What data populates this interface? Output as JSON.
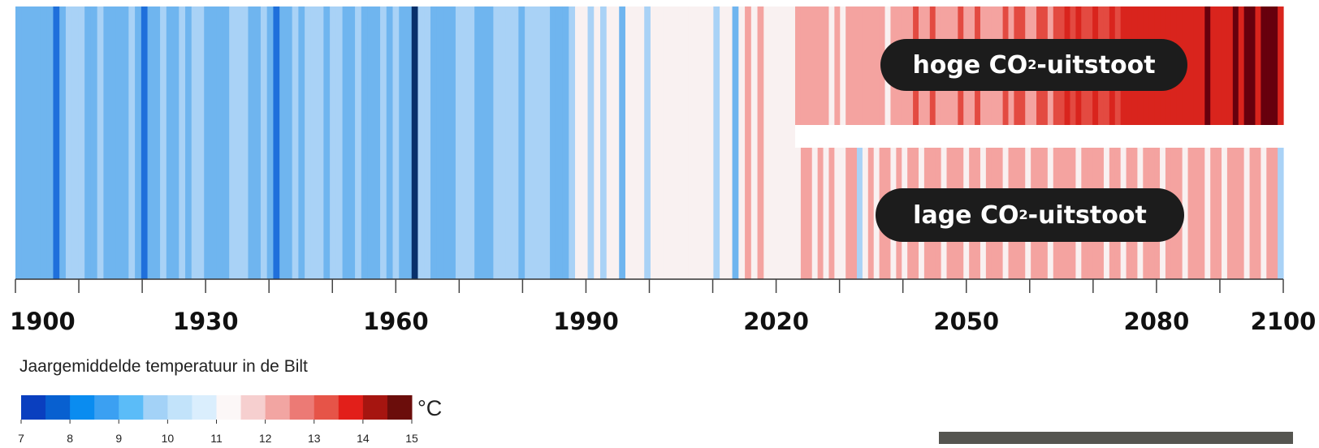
{
  "chart_data": {
    "type": "heatmap",
    "title": "",
    "x_range": [
      1900,
      2100
    ],
    "x_ticks": [
      "1900",
      "1930",
      "1960",
      "1990",
      "2020",
      "2050",
      "2080",
      "2100"
    ],
    "minor_tick_step_years": 10,
    "scenario_split_year": 2023,
    "scenarios": [
      {
        "name": "hoge CO2-uitstoot",
        "label_main": "hoge CO",
        "label_sub": "2",
        "label_tail": "-uitstoot"
      },
      {
        "name": "lage CO2-uitstoot",
        "label_main": "lage CO",
        "label_sub": "2",
        "label_tail": "-uitstoot"
      }
    ],
    "historical_bins": [
      9,
      9,
      9,
      9,
      9,
      9,
      8,
      9,
      10,
      10,
      10,
      9,
      9,
      10,
      9,
      9,
      9,
      9,
      10,
      9,
      8,
      9,
      9,
      10,
      9,
      9,
      10,
      9,
      10,
      10,
      9,
      9,
      9,
      9,
      10,
      10,
      10,
      9,
      9,
      10,
      9,
      8,
      9,
      9,
      10,
      9,
      10,
      10,
      10,
      9,
      10,
      10,
      9,
      9,
      10,
      9,
      9,
      9,
      10,
      9,
      10,
      9,
      9,
      7,
      10,
      10,
      9,
      9,
      9,
      9,
      10,
      10,
      10,
      9,
      9,
      9,
      10,
      10,
      10,
      10,
      9,
      10,
      10,
      10,
      10,
      9,
      9,
      9,
      10,
      11,
      11,
      10,
      11,
      10,
      11,
      11,
      9,
      11,
      11,
      11,
      10,
      11,
      11,
      11,
      11,
      11,
      11,
      11,
      11,
      11,
      11,
      10,
      11,
      11,
      9,
      11,
      12,
      11,
      12,
      11,
      11,
      11,
      11,
      11
    ],
    "high_emission_bins": [
      12,
      12,
      12,
      12,
      12,
      12,
      11,
      12,
      11,
      12,
      12,
      12,
      12,
      12,
      12,
      12,
      11,
      12,
      12,
      12,
      12,
      13,
      12,
      12,
      13,
      12,
      12,
      12,
      12,
      13,
      12,
      12,
      13,
      12,
      12,
      12,
      12,
      13,
      12,
      13,
      13,
      12,
      12,
      13,
      13,
      12,
      13,
      13,
      14,
      13,
      14,
      13,
      13,
      14,
      13,
      13,
      14,
      13,
      14,
      14,
      14,
      14,
      14,
      14,
      14,
      14,
      14,
      14,
      14,
      14,
      14,
      14,
      14,
      15,
      14,
      14,
      14,
      14,
      15,
      14,
      15,
      15,
      14,
      15,
      15,
      15,
      14
    ],
    "low_emission_bins": [
      11,
      12,
      12,
      11,
      12,
      11,
      12,
      11,
      11,
      12,
      12,
      10,
      11,
      12,
      11,
      12,
      12,
      11,
      12,
      11,
      12,
      12,
      11,
      12,
      12,
      12,
      11,
      12,
      12,
      12,
      11,
      12,
      12,
      11,
      12,
      12,
      12,
      11,
      12,
      12,
      12,
      11,
      12,
      12,
      12,
      11,
      12,
      12,
      12,
      12,
      11,
      12,
      12,
      12,
      12,
      11,
      12,
      12,
      11,
      12,
      12,
      11,
      12,
      12,
      12,
      11,
      12,
      12,
      12,
      11,
      12,
      12,
      12,
      11,
      12,
      12,
      11,
      12,
      12,
      12,
      11,
      12,
      12,
      11,
      12,
      12,
      10
    ],
    "color_scale": {
      "values": [
        7,
        8,
        9,
        10,
        11,
        12,
        13,
        14,
        15
      ],
      "tick_labels": [
        "7",
        "8",
        "9",
        "10",
        "11",
        "12",
        "13",
        "14",
        "15"
      ],
      "colors": [
        "#08306b",
        "#0b4fbf",
        "#1f6fdb",
        "#3a8ee6",
        "#6fb5ef",
        "#a9d2f6",
        "#d6ebfb",
        "#f9f1f1",
        "#fbd0cd",
        "#f4a3a0",
        "#ec706c",
        "#e34a41",
        "#d9241d",
        "#a6150f",
        "#67000d"
      ],
      "swatch_colors": [
        "#0a3fbf",
        "#0860d0",
        "#0a8cf0",
        "#3ba0f2",
        "#5bbcf8",
        "#a3d2f7",
        "#c2e3fa",
        "#daeefd",
        "#fcf7f7",
        "#f6cfcf",
        "#f2a5a2",
        "#ec7a75",
        "#e65448",
        "#e21f1a",
        "#a61510",
        "#6b0d0b"
      ],
      "unit": "°C"
    },
    "legend_title": "Jaargemiddelde temperatuur in de Bilt"
  }
}
